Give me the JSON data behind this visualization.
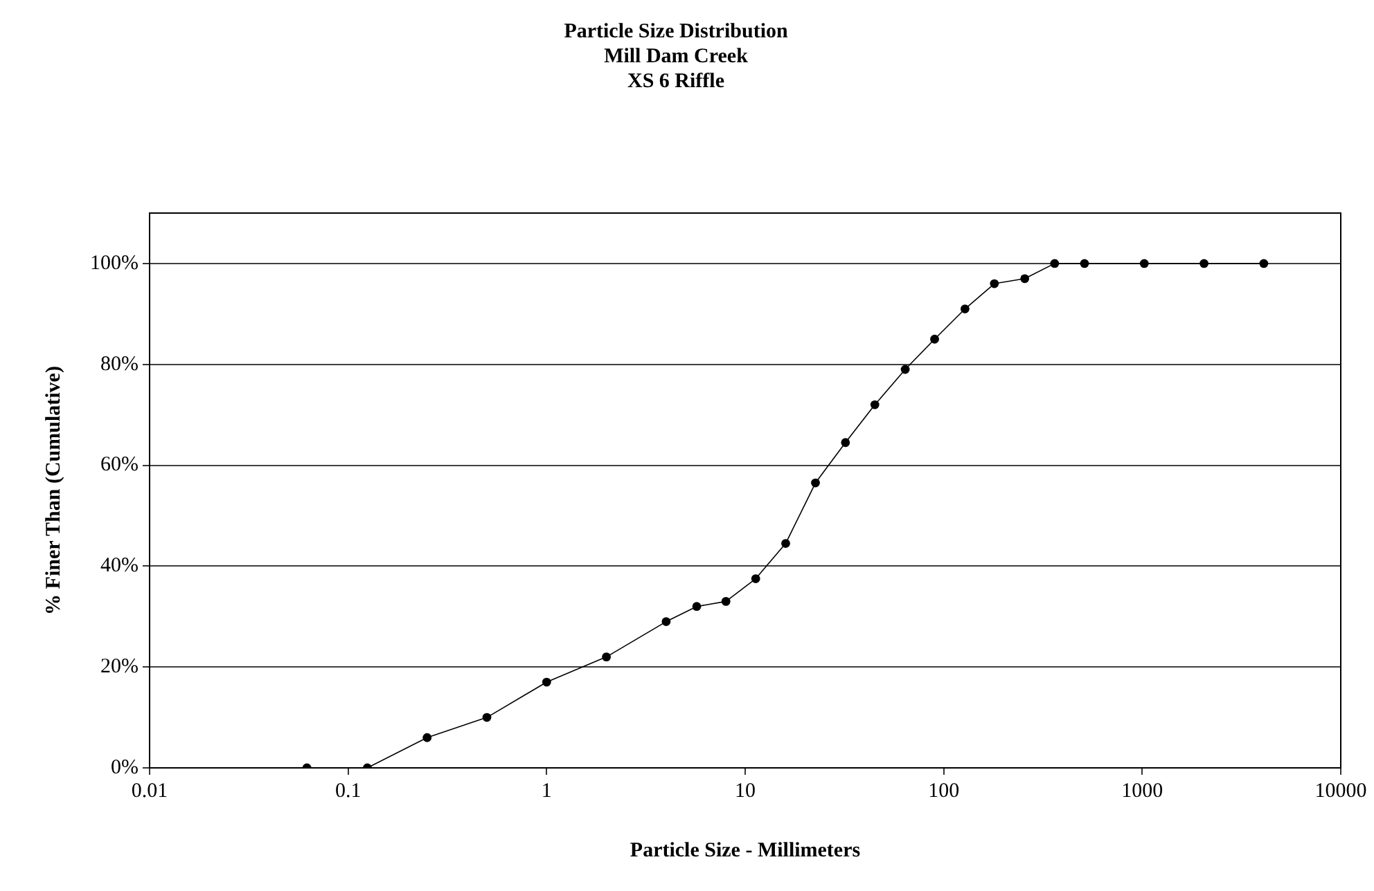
{
  "chart_data": {
    "type": "line",
    "title": "Particle Size Distribution",
    "subtitle": "Mill Dam Creek\nXS 6 Riffle",
    "xlabel": "Particle Size - Millimeters",
    "ylabel": "% Finer Than (Cumulative)",
    "x": [
      0.062,
      0.125,
      0.25,
      0.5,
      1,
      2,
      4,
      5.7,
      8,
      11.3,
      16,
      22.6,
      32,
      45,
      64,
      90,
      128,
      180,
      256,
      362,
      512,
      1024,
      2048,
      4096
    ],
    "series": [
      {
        "color": "#000000",
        "values": [
          0,
          0,
          6,
          10,
          17,
          22,
          29,
          32,
          33,
          37.5,
          44.5,
          56.5,
          64.5,
          72,
          79,
          85,
          91,
          96,
          97,
          100,
          100,
          100,
          100,
          100
        ]
      }
    ],
    "log": "x",
    "xlim": [
      0.01,
      10000
    ],
    "xticks": [
      0.01,
      0.1,
      1,
      10,
      100,
      1000,
      10000
    ],
    "ylim": [
      0,
      110
    ],
    "yticks": [
      {
        "value": 0,
        "label": "0%"
      },
      {
        "value": 20,
        "label": "20%"
      },
      {
        "value": 40,
        "label": "40%"
      },
      {
        "value": 60,
        "label": "60%"
      },
      {
        "value": 80,
        "label": "80%"
      },
      {
        "value": 100,
        "label": "100%"
      }
    ],
    "grid": "y",
    "legend": false,
    "marker": "circle",
    "line_style": "solid"
  }
}
